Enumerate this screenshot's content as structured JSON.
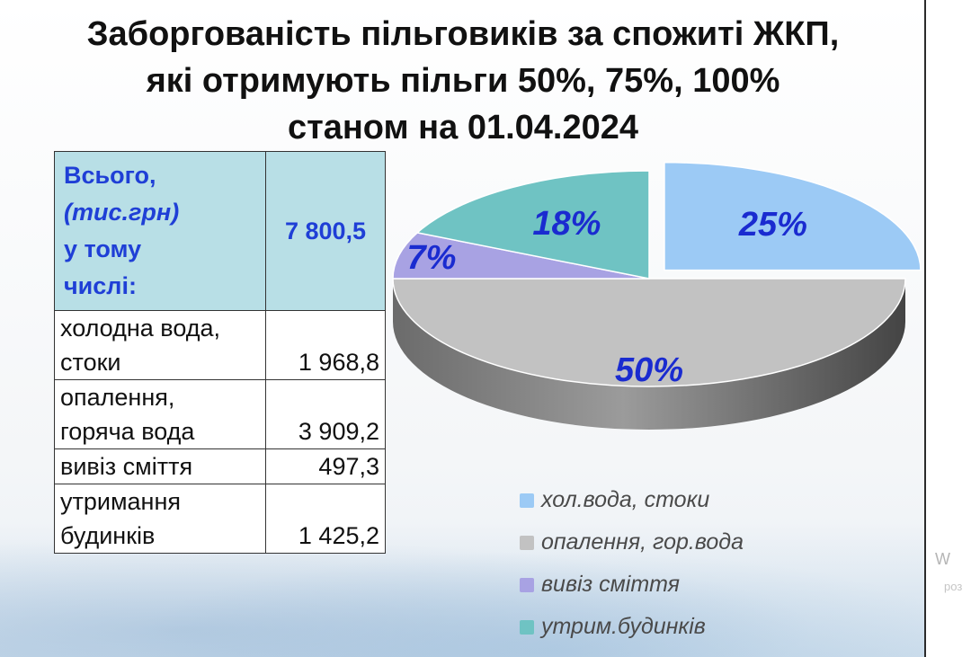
{
  "title": {
    "line1": "Заборгованість пільговиків за спожиті ЖКП,",
    "line2": "які отримують пільги 50%, 75%, 100%",
    "line3": "станом на 01.04.2024"
  },
  "table": {
    "total": {
      "line1": "Всього,",
      "line2": "(тис.грн)",
      "line3": "у тому",
      "line4": "числі:",
      "value": "7 800,5"
    },
    "rows": [
      {
        "label_line1": "холодна вода,",
        "label_line2": "стоки",
        "value": "1 968,8"
      },
      {
        "label_line1": "опалення,",
        "label_line2": "горяча вода",
        "value": "3 909,2"
      },
      {
        "label_line1": "вивіз сміття",
        "label_line2": "",
        "value": "497,3"
      },
      {
        "label_line1": "утримання",
        "label_line2": "будинків",
        "value": "1 425,2"
      }
    ]
  },
  "chart_data": {
    "type": "pie",
    "categories": [
      "хол.вода, стоки",
      "опалення, гор.вода",
      "вивіз сміття",
      "утрим.будинків"
    ],
    "values": [
      25,
      50,
      7,
      18
    ],
    "data_labels": [
      "25%",
      "50%",
      "7%",
      "18%"
    ],
    "colors": [
      "#9ccaf5",
      "#c2c2c2",
      "#a8a2e3",
      "#6fc3c3"
    ],
    "exploded": [
      true,
      false,
      false,
      false
    ],
    "legend_position": "bottom-right"
  },
  "legend": {
    "items": [
      {
        "label": "хол.вода, стоки",
        "color": "#9ccaf5"
      },
      {
        "label": "опалення, гор.вода",
        "color": "#c2c2c2"
      },
      {
        "label": "вивіз сміття",
        "color": "#a8a2e3"
      },
      {
        "label": " утрим.будинків",
        "color": "#6fc3c3"
      }
    ]
  },
  "watermark": {
    "line1": "W",
    "line2": "роз"
  }
}
